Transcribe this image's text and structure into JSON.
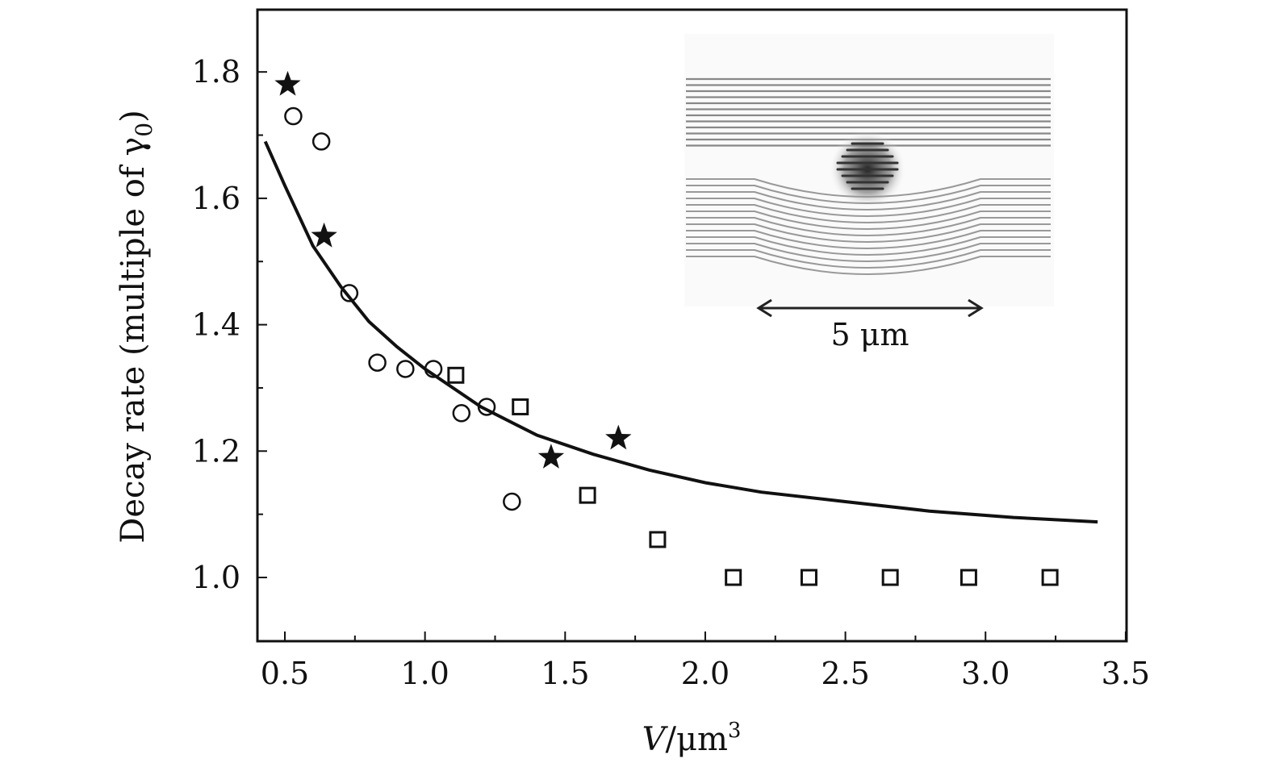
{
  "chart_data": {
    "type": "scatter",
    "title": "",
    "xlabel": "V/μm³",
    "xlabel_parts": {
      "var": "V",
      "unit": "/μm",
      "sup": "3"
    },
    "ylabel": "Decay rate (multiple of γ₀)",
    "ylabel_parts": {
      "main": "Decay rate (multiple of γ",
      "sub": "0",
      "end": ")"
    },
    "xlim": [
      0.4,
      3.5
    ],
    "ylim": [
      0.9,
      1.9
    ],
    "x_ticks": [
      0.5,
      1.0,
      1.5,
      2.0,
      2.5,
      3.0,
      3.5
    ],
    "x_tick_labels": [
      "0.5",
      "1.0",
      "1.5",
      "2.0",
      "2.5",
      "3.0",
      "3.5"
    ],
    "y_ticks": [
      1.0,
      1.2,
      1.4,
      1.6,
      1.8
    ],
    "y_tick_labels": [
      "1.0",
      "1.2",
      "1.4",
      "1.6",
      "1.8"
    ],
    "x_minor_ticks": [
      0.75,
      1.25,
      1.75,
      2.25,
      2.75,
      3.25
    ],
    "y_minor_ticks": [
      1.1,
      1.3,
      1.5,
      1.7
    ],
    "grid": false,
    "legend": "none",
    "series": [
      {
        "marker": "star",
        "x": [
          0.51,
          0.64,
          1.45,
          1.69
        ],
        "y": [
          1.78,
          1.54,
          1.19,
          1.22
        ]
      },
      {
        "marker": "circle",
        "x": [
          0.53,
          0.63,
          0.73,
          0.83,
          0.93,
          1.03,
          1.13,
          1.22,
          1.31
        ],
        "y": [
          1.73,
          1.69,
          1.45,
          1.34,
          1.33,
          1.33,
          1.26,
          1.27,
          1.12
        ]
      },
      {
        "marker": "square",
        "x": [
          1.11,
          1.34,
          1.58,
          1.83,
          2.1,
          2.37,
          2.66,
          2.94,
          3.23
        ],
        "y": [
          1.32,
          1.27,
          1.13,
          1.06,
          1.0,
          1.0,
          1.0,
          1.0,
          1.0
        ]
      },
      {
        "marker": "line",
        "x": [
          0.43,
          0.5,
          0.6,
          0.7,
          0.8,
          0.9,
          1.0,
          1.2,
          1.4,
          1.6,
          1.8,
          2.0,
          2.2,
          2.5,
          2.8,
          3.1,
          3.4
        ],
        "y": [
          1.69,
          1.62,
          1.525,
          1.46,
          1.405,
          1.365,
          1.33,
          1.27,
          1.225,
          1.195,
          1.17,
          1.15,
          1.135,
          1.12,
          1.105,
          1.095,
          1.088
        ]
      }
    ],
    "inset": {
      "scale_label": "5 μm"
    }
  }
}
